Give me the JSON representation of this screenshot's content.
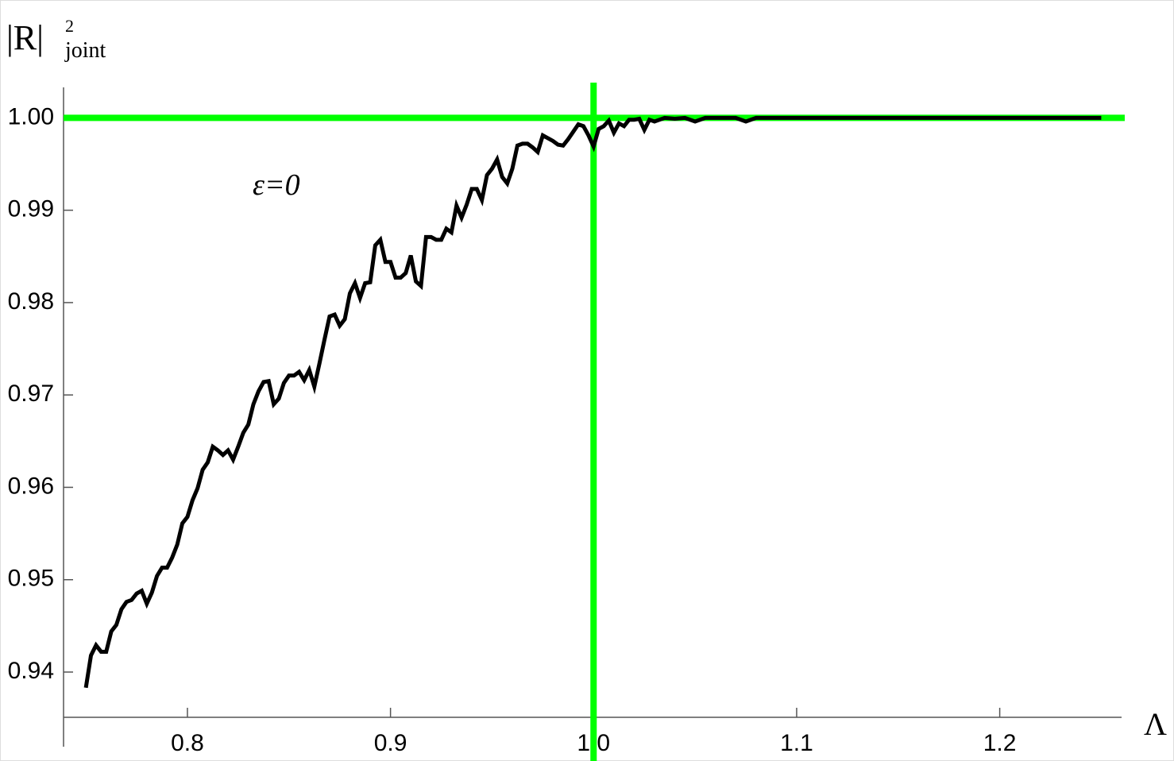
{
  "chart_data": {
    "type": "line",
    "ylabel": "|R|",
    "ylabel_sup": "2",
    "ylabel_sub": "joint",
    "xlabel": "Λ",
    "annotation": "ε=0",
    "xlim": [
      0.739,
      1.26
    ],
    "ylim": [
      0.9351,
      1.0033
    ],
    "xticks": [
      0.8,
      0.9,
      {
        "value": 1,
        "label": "1.0"
      },
      1.1,
      1.2
    ],
    "yticks": [
      0.94,
      0.95,
      0.96,
      0.97,
      0.98,
      0.99,
      {
        "value": 1,
        "label": "1.00"
      }
    ],
    "reference_lines": {
      "x": 1,
      "y": 1,
      "color": "#00ff00"
    },
    "series": [
      {
        "color": "#000000",
        "x": [
          0.75,
          0.7525,
          0.755,
          0.7575,
          0.76,
          0.7625,
          0.765,
          0.7675,
          0.77,
          0.7725,
          0.775,
          0.7775,
          0.78,
          0.7825,
          0.785,
          0.7875,
          0.79,
          0.7925,
          0.795,
          0.7975,
          0.8,
          0.8025,
          0.805,
          0.8075,
          0.81,
          0.8125,
          0.815,
          0.8175,
          0.82,
          0.8225,
          0.825,
          0.8275,
          0.83,
          0.8325,
          0.835,
          0.8375,
          0.84,
          0.8425,
          0.845,
          0.8475,
          0.85,
          0.8525,
          0.855,
          0.8575,
          0.86,
          0.8625,
          0.865,
          0.8675,
          0.87,
          0.8725,
          0.875,
          0.8775,
          0.88,
          0.8825,
          0.885,
          0.8875,
          0.89,
          0.8925,
          0.895,
          0.8975,
          0.9,
          0.9025,
          0.905,
          0.9075,
          0.91,
          0.9125,
          0.915,
          0.9175,
          0.92,
          0.9225,
          0.925,
          0.9275,
          0.93,
          0.9325,
          0.935,
          0.9375,
          0.94,
          0.9425,
          0.945,
          0.9475,
          0.95,
          0.9525,
          0.955,
          0.9575,
          0.96,
          0.9625,
          0.965,
          0.9675,
          0.97,
          0.9725,
          0.975,
          0.9775,
          0.98,
          0.9825,
          0.985,
          0.9875,
          0.99,
          0.9925,
          0.995,
          0.9975,
          1.0,
          1.0025,
          1.005,
          1.0075,
          1.01,
          1.0125,
          1.015,
          1.0175,
          1.02,
          1.0225,
          1.025,
          1.0275,
          1.03,
          1.0325,
          1.035,
          1.04,
          1.045,
          1.05,
          1.055,
          1.06,
          1.07,
          1.075,
          1.08,
          1.09,
          1.1,
          1.125,
          1.15,
          1.175,
          1.2,
          1.225,
          1.25
        ],
        "values": [
          0.9383,
          0.9418,
          0.9429,
          0.9422,
          0.9422,
          0.9444,
          0.9451,
          0.9468,
          0.9476,
          0.9478,
          0.9485,
          0.9488,
          0.9474,
          0.9486,
          0.9504,
          0.9513,
          0.9513,
          0.9524,
          0.9538,
          0.9561,
          0.9568,
          0.9586,
          0.9599,
          0.9619,
          0.9627,
          0.9644,
          0.964,
          0.9635,
          0.964,
          0.963,
          0.9644,
          0.9659,
          0.9668,
          0.969,
          0.9704,
          0.9714,
          0.9715,
          0.969,
          0.9696,
          0.9713,
          0.9721,
          0.9721,
          0.9725,
          0.9716,
          0.9727,
          0.9709,
          0.9734,
          0.976,
          0.9785,
          0.9787,
          0.9775,
          0.9782,
          0.981,
          0.9821,
          0.9805,
          0.9821,
          0.9822,
          0.9862,
          0.9868,
          0.9844,
          0.9844,
          0.9827,
          0.9827,
          0.9832,
          0.9851,
          0.9823,
          0.9818,
          0.9871,
          0.9871,
          0.9868,
          0.9868,
          0.988,
          0.9876,
          0.9905,
          0.9892,
          0.9906,
          0.9923,
          0.9923,
          0.9911,
          0.9938,
          0.9945,
          0.9955,
          0.9936,
          0.9929,
          0.9945,
          0.997,
          0.9972,
          0.9972,
          0.9968,
          0.9963,
          0.9981,
          0.9978,
          0.9975,
          0.9971,
          0.997,
          0.9977,
          0.9985,
          0.9993,
          0.9991,
          0.9981,
          0.9969,
          0.9988,
          0.9991,
          0.9997,
          0.9984,
          0.9994,
          0.9991,
          0.9998,
          0.9998,
          0.9999,
          0.9987,
          0.9998,
          0.9996,
          0.9998,
          1.0,
          0.9999,
          1.0,
          0.9996,
          1.0,
          1.0,
          1.0,
          0.9996,
          1.0,
          1.0,
          1.0,
          1.0,
          1.0,
          1.0,
          1.0,
          1.0,
          1.0
        ]
      }
    ]
  }
}
